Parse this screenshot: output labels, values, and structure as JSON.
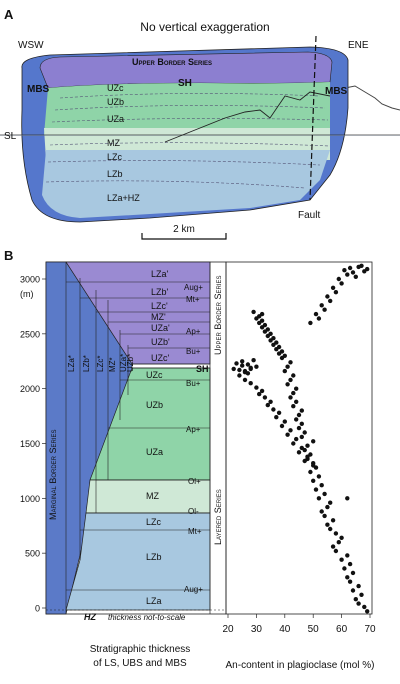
{
  "panelA": {
    "label": "A",
    "subtitle": "No vertical exaggeration",
    "left_dir": "WSW",
    "right_dir": "ENE",
    "ubs": "Upper Border Series",
    "mbs_left": "MBS",
    "mbs_right": "MBS",
    "sh": "SH",
    "zones": [
      "UZc",
      "UZb",
      "UZa",
      "MZ",
      "LZc",
      "LZb",
      "LZa+HZ"
    ],
    "sl": "SL",
    "fault": "Fault",
    "scale": "2 km"
  },
  "panelB": {
    "label": "B",
    "yunit": "(m)",
    "yticks": [
      "3000",
      "2500",
      "2000",
      "1500",
      "1000",
      "500",
      "0"
    ],
    "xticks": [
      "20",
      "30",
      "40",
      "50",
      "60",
      "70"
    ],
    "xlabel": "An-content in plagioclase (mol %)",
    "caption1": "Stratigraphic thickness",
    "caption2": "of LS, UBS and MBS",
    "mbs_title": "Marginal Border Series",
    "ubs_title": "Upper Border Series",
    "ls_title": "Layered Series",
    "hz": "HZ",
    "not_to_scale": "thickness not-to-scale",
    "sh": "SH",
    "mbs_units": [
      "LZa*",
      "LZb*",
      "LZc*",
      "MZ*",
      "UZa*",
      "UZb*"
    ],
    "ubs_units": [
      "LZa'",
      "LZb'",
      "LZc'",
      "MZ'",
      "UZa'",
      "UZb'",
      "UZc'"
    ],
    "ls_units": [
      "UZc",
      "UZb",
      "UZa",
      "MZ",
      "LZc",
      "LZb",
      "LZa"
    ],
    "markers": [
      "Aug+",
      "Mt+",
      "Ap+",
      "Bu+",
      "Bu+",
      "Ap+",
      "Ol+",
      "Ol-",
      "Mt+",
      "Aug+"
    ]
  },
  "chart_data": {
    "type": "scatter",
    "xlabel": "An-content in plagioclase (mol %)",
    "ylabel": "(m)",
    "xlim": [
      20,
      70
    ],
    "ylim": [
      -50,
      3150
    ],
    "x": [
      69,
      68,
      66,
      65,
      67,
      64,
      66,
      63,
      62,
      64,
      61,
      63,
      60,
      62,
      58,
      57,
      59,
      60,
      58,
      56,
      55,
      57,
      54,
      53,
      55,
      56,
      52,
      54,
      51,
      53,
      50,
      52,
      49,
      51,
      50,
      48,
      49,
      47,
      48,
      50,
      46,
      47,
      45,
      46,
      44,
      45,
      46,
      43,
      44,
      42,
      43,
      44,
      41,
      42,
      43,
      40,
      41,
      42,
      39,
      40,
      38,
      39,
      37,
      38,
      36,
      37,
      35,
      36,
      34,
      35,
      33,
      34,
      32,
      33,
      31,
      32,
      30,
      31,
      32,
      29,
      28,
      30,
      27,
      26,
      28,
      25,
      24,
      26,
      23,
      27,
      25,
      22,
      29,
      24,
      26,
      28,
      30,
      32,
      31,
      33,
      35,
      34,
      36,
      38,
      37,
      40,
      39,
      42,
      41,
      44,
      43,
      46,
      45,
      48,
      47,
      50,
      49,
      52,
      51,
      54,
      53,
      56,
      55,
      58,
      57,
      60,
      59,
      62,
      61,
      63,
      64,
      65,
      66,
      67,
      68,
      69,
      62
    ],
    "y": [
      -30,
      10,
      40,
      80,
      120,
      160,
      200,
      240,
      280,
      320,
      360,
      400,
      440,
      480,
      520,
      560,
      600,
      640,
      680,
      720,
      760,
      800,
      840,
      880,
      920,
      960,
      1000,
      1040,
      1080,
      1120,
      1160,
      1200,
      1240,
      1280,
      1320,
      1360,
      1400,
      1440,
      1480,
      1520,
      1560,
      1600,
      1640,
      1680,
      1720,
      1760,
      1800,
      1840,
      1880,
      1920,
      1960,
      2000,
      2040,
      2080,
      2120,
      2160,
      2200,
      2240,
      2280,
      2300,
      2320,
      2340,
      2360,
      2380,
      2400,
      2420,
      2440,
      2460,
      2480,
      2500,
      2520,
      2540,
      2560,
      2580,
      2600,
      2620,
      2640,
      2660,
      2680,
      2700,
      2180,
      2200,
      2220,
      2160,
      2190,
      2210,
      2170,
      2150,
      2230,
      2140,
      2250,
      2180,
      2260,
      2120,
      2080,
      2050,
      2010,
      1980,
      1950,
      1920,
      1880,
      1850,
      1810,
      1780,
      1740,
      1700,
      1660,
      1620,
      1580,
      1540,
      1500,
      1460,
      1420,
      1380,
      1340,
      1300,
      2600,
      2640,
      2680,
      2720,
      2760,
      2800,
      2840,
      2880,
      2920,
      2960,
      3000,
      3040,
      3080,
      3100,
      3060,
      3020,
      3110,
      3120,
      3070,
      3090,
      1000
    ]
  }
}
